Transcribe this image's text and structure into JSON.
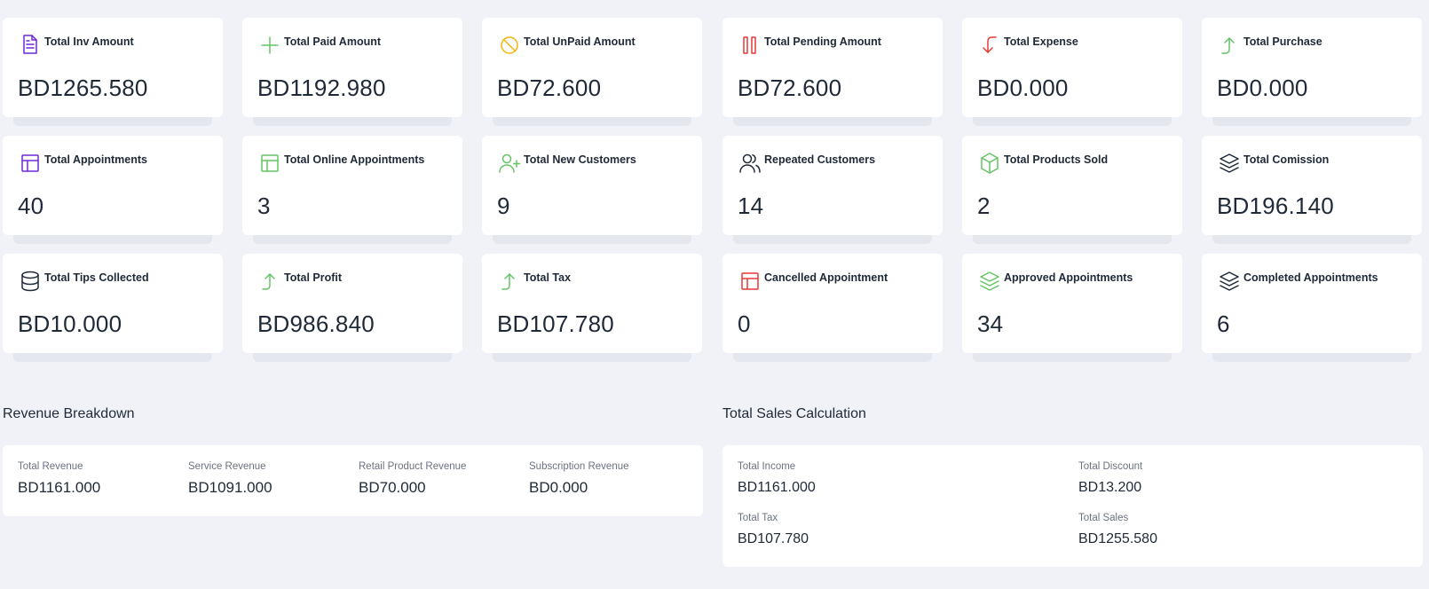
{
  "colors": {
    "purple": "#6d28d9",
    "green": "#65c466",
    "yellow": "#f5b40c",
    "red": "#e53935",
    "dark": "#1f2937"
  },
  "stats": [
    {
      "label": "Total Inv Amount",
      "value": "BD1265.580",
      "icon": "document-icon",
      "color": "#6d28d9"
    },
    {
      "label": "Total Paid Amount",
      "value": "BD1192.980",
      "icon": "plus-icon",
      "color": "#65c466"
    },
    {
      "label": "Total UnPaid Amount",
      "value": "BD72.600",
      "icon": "slash-circle-icon",
      "color": "#f5b40c"
    },
    {
      "label": "Total Pending Amount",
      "value": "BD72.600",
      "icon": "pause-icon",
      "color": "#e53935"
    },
    {
      "label": "Total Expense",
      "value": "BD0.000",
      "icon": "arrow-down-left-icon",
      "color": "#e53935"
    },
    {
      "label": "Total Purchase",
      "value": "BD0.000",
      "icon": "arrow-up-right-icon",
      "color": "#65c466"
    },
    {
      "label": "Total Appointments",
      "value": "40",
      "icon": "layout-icon",
      "color": "#6d28d9"
    },
    {
      "label": "Total Online Appointments",
      "value": "3",
      "icon": "layout-icon",
      "color": "#65c466"
    },
    {
      "label": "Total New Customers",
      "value": "9",
      "icon": "user-plus-icon",
      "color": "#65c466"
    },
    {
      "label": "Repeated Customers",
      "value": "14",
      "icon": "users-icon",
      "color": "#1f2937"
    },
    {
      "label": "Total Products Sold",
      "value": "2",
      "icon": "box-icon",
      "color": "#65c466"
    },
    {
      "label": "Total Comission",
      "value": "BD196.140",
      "icon": "layers-icon",
      "color": "#1f2937"
    },
    {
      "label": "Total Tips Collected",
      "value": "BD10.000",
      "icon": "database-icon",
      "color": "#1f2937"
    },
    {
      "label": "Total Profit",
      "value": "BD986.840",
      "icon": "arrow-up-right-icon",
      "color": "#65c466"
    },
    {
      "label": "Total Tax",
      "value": "BD107.780",
      "icon": "arrow-up-right-icon",
      "color": "#65c466"
    },
    {
      "label": "Cancelled Appointment",
      "value": "0",
      "icon": "layout-icon",
      "color": "#e53935"
    },
    {
      "label": "Approved Appointments",
      "value": "34",
      "icon": "layers-icon",
      "color": "#65c466"
    },
    {
      "label": "Completed Appointments",
      "value": "6",
      "icon": "layers-icon",
      "color": "#1f2937"
    }
  ],
  "revenue": {
    "title": "Revenue Breakdown",
    "items": [
      {
        "label": "Total Revenue",
        "value": "BD1161.000"
      },
      {
        "label": "Service Revenue",
        "value": "BD1091.000"
      },
      {
        "label": "Retail Product Revenue",
        "value": "BD70.000"
      },
      {
        "label": "Subscription Revenue",
        "value": "BD0.000"
      }
    ]
  },
  "sales": {
    "title": "Total Sales Calculation",
    "items": [
      {
        "label": "Total Income",
        "value": "BD1161.000"
      },
      {
        "label": "Total Discount",
        "value": "BD13.200"
      },
      {
        "label": "Total Tax",
        "value": "BD107.780"
      },
      {
        "label": "Total Sales",
        "value": "BD1255.580"
      }
    ]
  }
}
